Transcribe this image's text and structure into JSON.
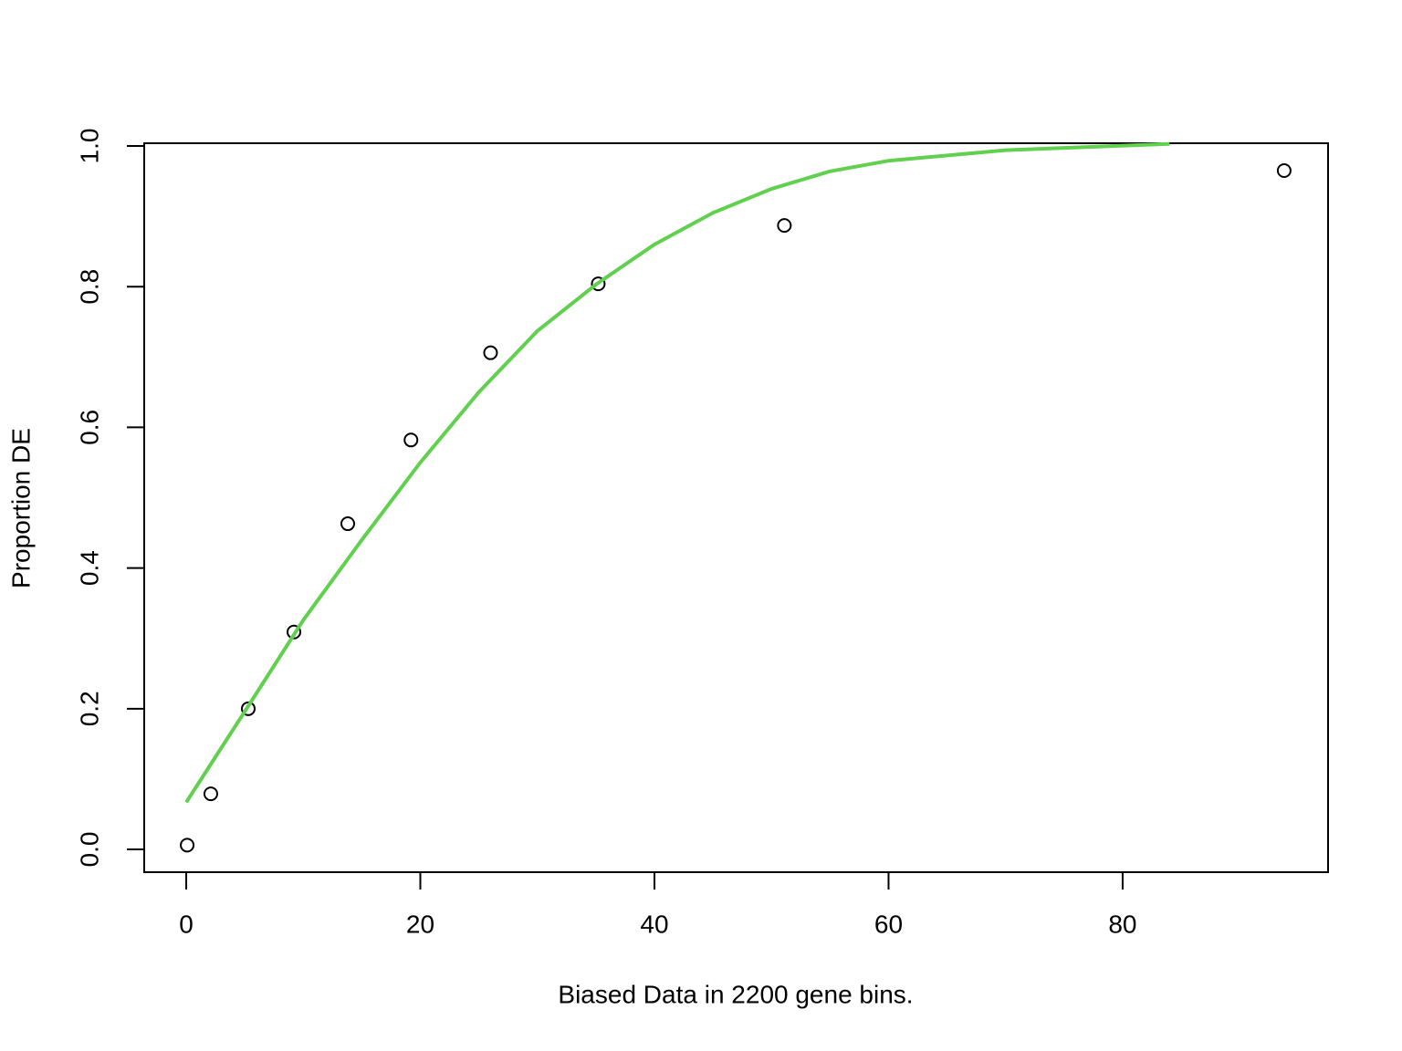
{
  "chart_data": {
    "type": "scatter",
    "xlabel": "Biased Data in 2200 gene bins.",
    "ylabel": "Proportion DE",
    "x": [
      0.08,
      2.1,
      5.3,
      9.2,
      13.8,
      19.2,
      26.0,
      35.2,
      51.1,
      93.8
    ],
    "values": [
      0.006,
      0.079,
      0.2,
      0.309,
      0.463,
      0.582,
      0.706,
      0.804,
      0.887,
      0.965
    ],
    "point_color": "#000000",
    "fit": {
      "color": "#61d04f",
      "x": [
        0,
        5,
        10,
        15,
        20,
        25,
        30,
        35,
        40,
        45,
        50,
        55,
        60,
        70,
        84
      ],
      "values": [
        0.067,
        0.196,
        0.326,
        0.44,
        0.55,
        0.65,
        0.737,
        0.803,
        0.86,
        0.905,
        0.939,
        0.964,
        0.979,
        0.994,
        1.003
      ]
    },
    "xlim": [
      -3.59,
      97.55
    ],
    "ylim": [
      -0.0324,
      1.0039
    ],
    "xticks": [
      0,
      20,
      40,
      60,
      80
    ],
    "yticks": [
      {
        "value": 0,
        "label": "0.0"
      },
      {
        "value": 0.2,
        "label": "0.2"
      },
      {
        "value": 0.4,
        "label": "0.4"
      },
      {
        "value": 0.6,
        "label": "0.6"
      },
      {
        "value": 0.8,
        "label": "0.8"
      },
      {
        "value": 1,
        "label": "1.0"
      }
    ]
  }
}
